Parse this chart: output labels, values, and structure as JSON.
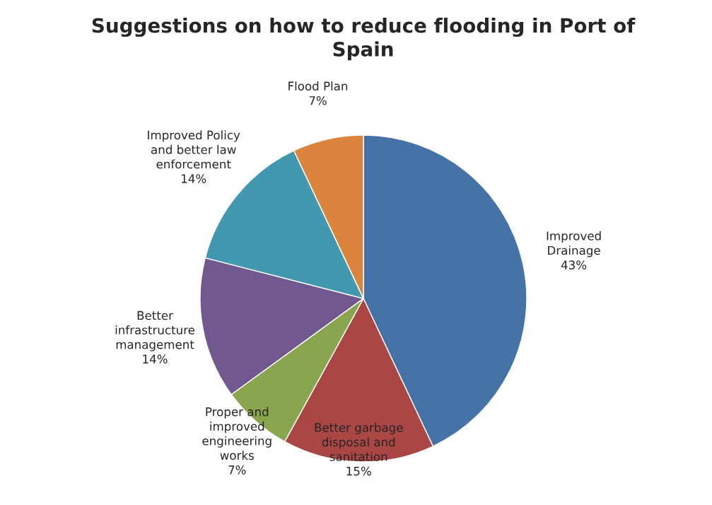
{
  "chart_data": {
    "type": "pie",
    "title": "Suggestions on how to reduce flooding in Port of Spain",
    "categories": [
      "Improved Drainage",
      "Better garbage disposal and sanitation",
      "Proper and improved engineering works",
      "Better infrastructure management",
      "Improved Policy and better law enforcement",
      "Flood Plan"
    ],
    "values": [
      43,
      15,
      7,
      14,
      14,
      7
    ],
    "colors": [
      "#4572a7",
      "#aa4643",
      "#89a54e",
      "#71588f",
      "#4198af",
      "#db843d"
    ],
    "value_labels": [
      "43%",
      "15%",
      "7%",
      "14%",
      "14%",
      "7%"
    ],
    "legend": false
  }
}
